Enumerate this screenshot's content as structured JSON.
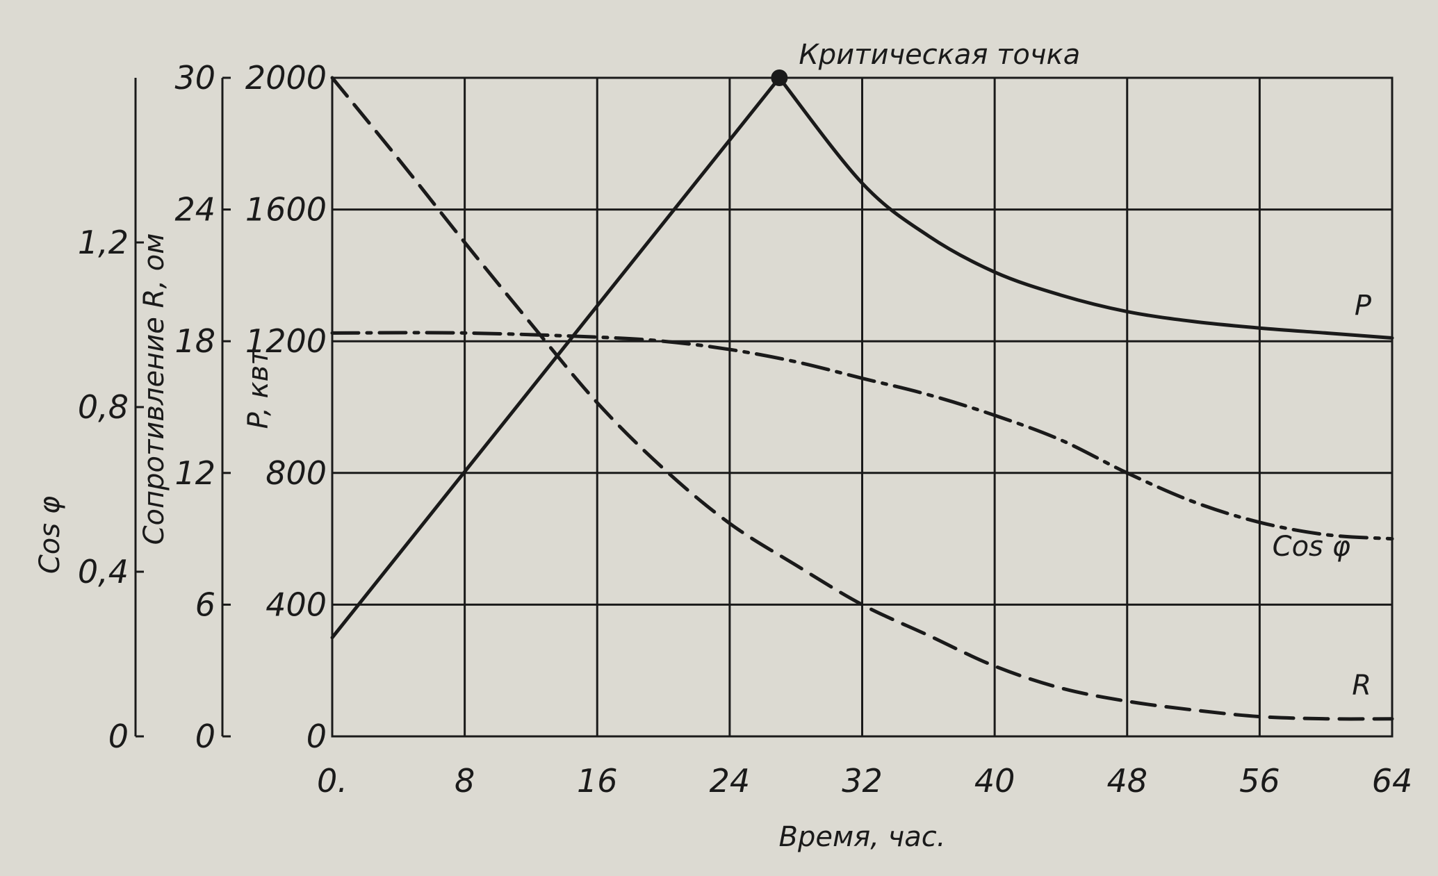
{
  "chart_data": {
    "type": "line",
    "xlabel": "Время, час.",
    "x_ticks": [
      "0.",
      "8",
      "16",
      "24",
      "32",
      "40",
      "48",
      "56",
      "64"
    ],
    "xlim": [
      0,
      64
    ],
    "axes": {
      "power": {
        "label": "P, квт",
        "ticks": [
          "0",
          "400",
          "800",
          "1200",
          "1600",
          "2000"
        ],
        "range": [
          0,
          2000
        ]
      },
      "resistance": {
        "label": "Сопротивление R, ом",
        "ticks": [
          "0",
          "6",
          "12",
          "18",
          "24",
          "30"
        ],
        "range": [
          0,
          30
        ]
      },
      "cos": {
        "label": "Cos φ",
        "ticks": [
          "0",
          "0,4",
          "0,8",
          "1,2"
        ],
        "range": [
          0,
          1.6
        ]
      }
    },
    "annotation": "Критическая точка",
    "critical_point": {
      "x": 27,
      "y": 2000
    },
    "series": [
      {
        "name": "P",
        "axis": "power",
        "style": "solid",
        "x": [
          0,
          27,
          32,
          36,
          40,
          44,
          48,
          52,
          56,
          60,
          64
        ],
        "y": [
          300,
          2000,
          1680,
          1520,
          1410,
          1340,
          1290,
          1260,
          1240,
          1225,
          1210
        ]
      },
      {
        "name": "Cos φ",
        "axis": "cos",
        "style": "dashdot",
        "x": [
          0,
          8,
          16,
          20,
          24,
          28,
          32,
          36,
          40,
          44,
          48,
          52,
          56,
          60,
          64
        ],
        "y": [
          0.98,
          0.98,
          0.97,
          0.96,
          0.94,
          0.91,
          0.87,
          0.83,
          0.78,
          0.72,
          0.64,
          0.57,
          0.52,
          0.49,
          0.48
        ]
      },
      {
        "name": "R",
        "axis": "resistance",
        "style": "dashed",
        "x": [
          0,
          4,
          8,
          12,
          16,
          20,
          24,
          28,
          32,
          36,
          40,
          44,
          48,
          52,
          56,
          60,
          64
        ],
        "y": [
          30,
          26.3,
          22.5,
          18.8,
          15.2,
          12.2,
          9.7,
          7.8,
          6.0,
          4.6,
          3.2,
          2.2,
          1.6,
          1.2,
          0.9,
          0.8,
          0.8
        ]
      }
    ]
  }
}
